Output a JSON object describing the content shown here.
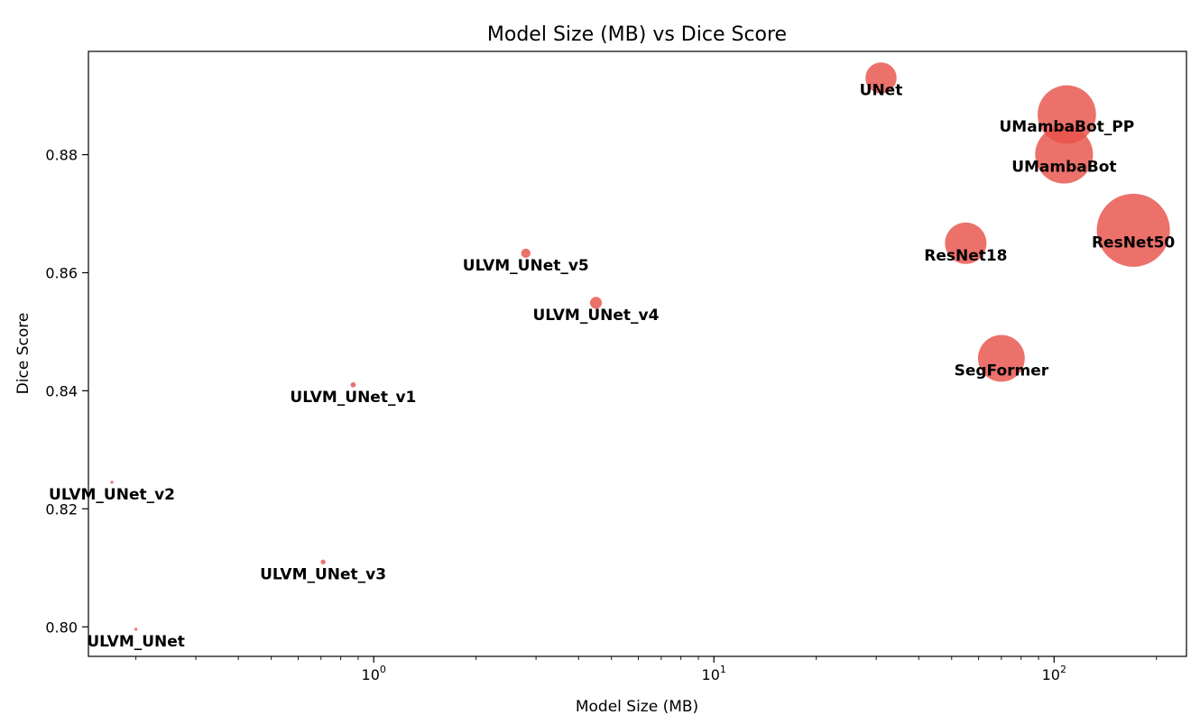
{
  "chart_data": {
    "type": "scatter",
    "title": "Model Size (MB) vs Dice Score",
    "xlabel": "Model Size (MB)",
    "ylabel": "Dice Score",
    "xscale": "log",
    "xlim": [
      0.145,
      245
    ],
    "ylim": [
      0.795,
      0.8975
    ],
    "x_ticks": [
      {
        "value": 1,
        "base": "10",
        "exp": "0"
      },
      {
        "value": 10,
        "base": "10",
        "exp": "1"
      },
      {
        "value": 100,
        "base": "10",
        "exp": "2"
      }
    ],
    "y_ticks": [
      {
        "value": 0.8,
        "label": "0.80"
      },
      {
        "value": 0.82,
        "label": "0.82"
      },
      {
        "value": 0.84,
        "label": "0.84"
      },
      {
        "value": 0.86,
        "label": "0.86"
      },
      {
        "value": 0.88,
        "label": "0.88"
      }
    ],
    "grid": false,
    "marker_color": "#e8524a",
    "points": [
      {
        "label": "UNet",
        "x": 31,
        "y": 0.893
      },
      {
        "label": "UMambaBot_PP",
        "x": 109,
        "y": 0.8868
      },
      {
        "label": "UMambaBot",
        "x": 107,
        "y": 0.88
      },
      {
        "label": "ResNet50",
        "x": 171,
        "y": 0.8672
      },
      {
        "label": "ResNet18",
        "x": 55,
        "y": 0.865
      },
      {
        "label": "SegFormer",
        "x": 70,
        "y": 0.8455
      },
      {
        "label": "ULVM_UNet_v5",
        "x": 2.8,
        "y": 0.8633
      },
      {
        "label": "ULVM_UNet_v4",
        "x": 4.5,
        "y": 0.8549
      },
      {
        "label": "ULVM_UNet_v1",
        "x": 0.87,
        "y": 0.841
      },
      {
        "label": "ULVM_UNet_v2",
        "x": 0.17,
        "y": 0.8245
      },
      {
        "label": "ULVM_UNet_v3",
        "x": 0.71,
        "y": 0.811
      },
      {
        "label": "ULVM_UNet",
        "x": 0.2,
        "y": 0.7996
      }
    ]
  }
}
